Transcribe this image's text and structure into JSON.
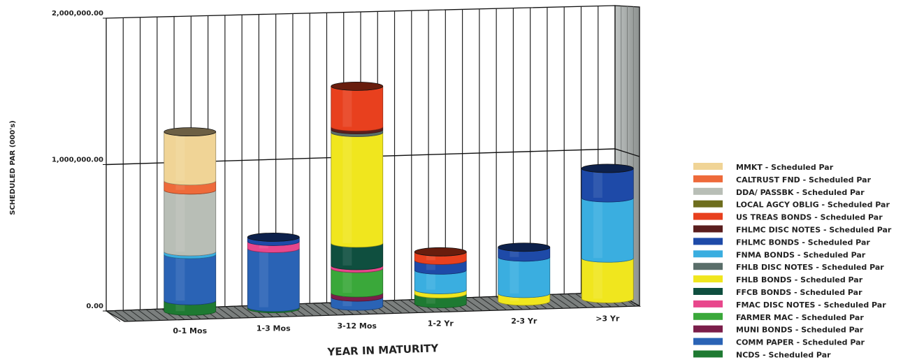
{
  "chart_data": {
    "type": "bar",
    "stacked": true,
    "style": "3d-cylinder",
    "ylabel": "SCHEDULED PAR (000's)",
    "xlabel": "YEAR IN MATURITY",
    "ylim": [
      0,
      2000000
    ],
    "yticks": [
      "0.00",
      "1,000,000.00",
      "2,000,000.00"
    ],
    "grid": true,
    "legend_position": "right",
    "categories": [
      "0-1 Mos",
      "1-3 Mos",
      "3-12 Mos",
      "1-2 Yr",
      "2-3 Yr",
      ">3 Yr"
    ],
    "series": [
      {
        "name": "NCDS - Scheduled Par",
        "color": "#1e7a32",
        "values": [
          75000,
          10000,
          0,
          70000,
          0,
          0
        ]
      },
      {
        "name": "COMM PAPER - Scheduled Par",
        "color": "#2a63b5",
        "values": [
          330000,
          420000,
          65000,
          0,
          0,
          0
        ]
      },
      {
        "name": "MUNI BONDS - Scheduled Par",
        "color": "#7b1e4a",
        "values": [
          0,
          0,
          30000,
          0,
          0,
          0
        ]
      },
      {
        "name": "FARMER MAC - Scheduled Par",
        "color": "#3aa83a",
        "values": [
          0,
          0,
          175000,
          0,
          0,
          0
        ]
      },
      {
        "name": "FMAC DISC NOTES - Scheduled Par",
        "color": "#e8478c",
        "values": [
          0,
          50000,
          20000,
          0,
          0,
          0
        ]
      },
      {
        "name": "FFCB BONDS - Scheduled Par",
        "color": "#0f4f3f",
        "values": [
          0,
          0,
          160000,
          0,
          0,
          0
        ]
      },
      {
        "name": "FHLB BONDS - Scheduled Par",
        "color": "#f0e61e",
        "values": [
          0,
          0,
          790000,
          30000,
          55000,
          290000
        ]
      },
      {
        "name": "FHLB DISC NOTES - Scheduled Par",
        "color": "#5a6e6a",
        "values": [
          0,
          0,
          20000,
          0,
          0,
          0
        ]
      },
      {
        "name": "FNMA BONDS - Scheduled Par",
        "color": "#3aaee0",
        "values": [
          20000,
          0,
          0,
          140000,
          260000,
          430000
        ]
      },
      {
        "name": "FHLMC BONDS - Scheduled Par",
        "color": "#1e4aa8",
        "values": [
          0,
          30000,
          0,
          70000,
          70000,
          210000
        ]
      },
      {
        "name": "FHLMC DISC NOTES - Scheduled Par",
        "color": "#5a1e1e",
        "values": [
          0,
          0,
          20000,
          0,
          0,
          0
        ]
      },
      {
        "name": "US TREAS BONDS - Scheduled Par",
        "color": "#e8401e",
        "values": [
          0,
          0,
          290000,
          60000,
          0,
          0
        ]
      },
      {
        "name": "LOCAL AGCY OBLIG - Scheduled Par",
        "color": "#6e6e1e",
        "values": [
          0,
          0,
          0,
          0,
          0,
          0
        ]
      },
      {
        "name": "DDA/ PASSBK - Scheduled Par",
        "color": "#b8beb6",
        "values": [
          440000,
          0,
          0,
          0,
          0,
          0
        ]
      },
      {
        "name": "CALTRUST FND - Scheduled Par",
        "color": "#ee6a3a",
        "values": [
          65000,
          0,
          0,
          0,
          0,
          0
        ]
      },
      {
        "name": "MMKT - Scheduled Par",
        "color": "#f0d496",
        "values": [
          350000,
          0,
          0,
          0,
          0,
          0
        ]
      }
    ]
  }
}
